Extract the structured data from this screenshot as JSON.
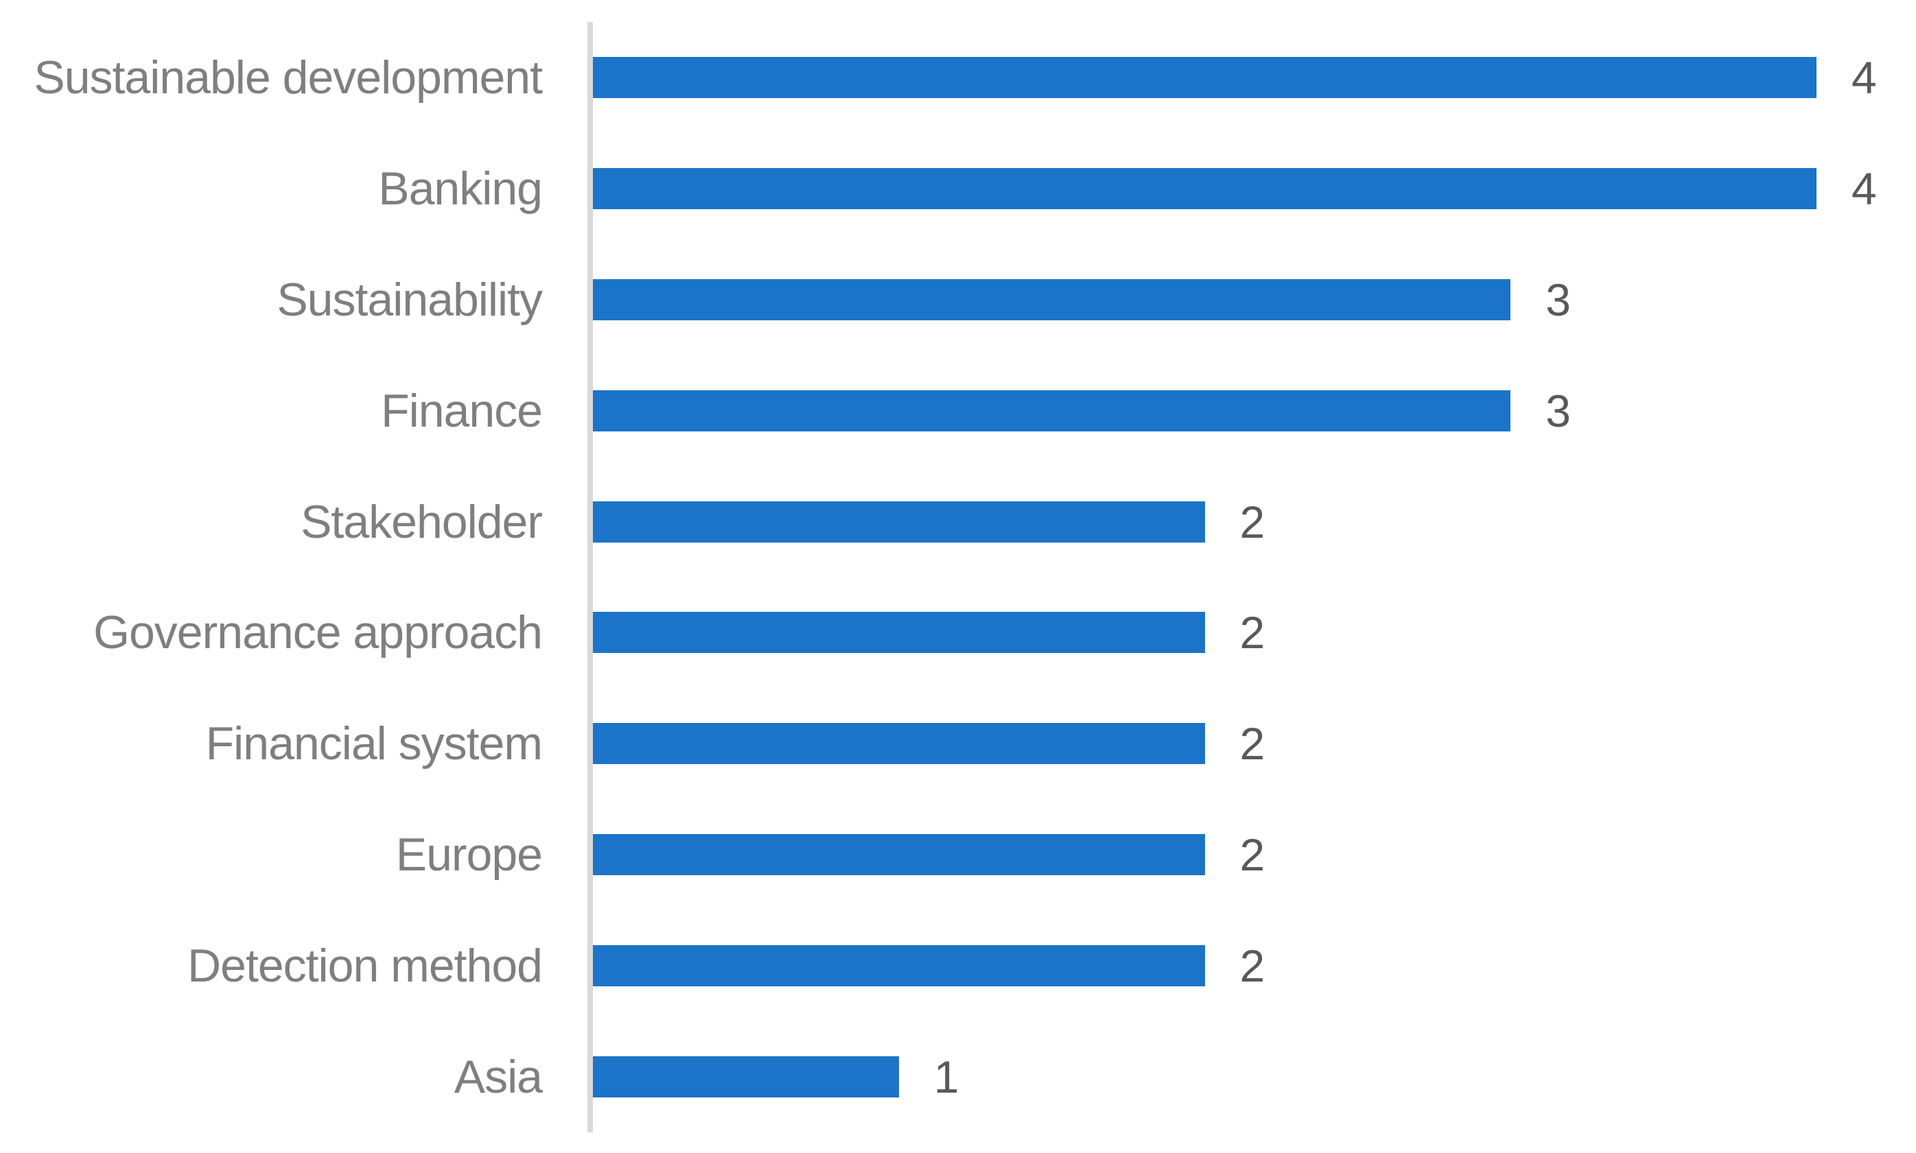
{
  "chart_data": {
    "type": "bar",
    "orientation": "horizontal",
    "title": "",
    "xlabel": "",
    "ylabel": "",
    "categories": [
      "Sustainable development",
      "Banking",
      "Sustainability",
      "Finance",
      "Stakeholder",
      "Governance approach",
      "Financial system",
      "Europe",
      "Detection method",
      "Asia"
    ],
    "values": [
      4,
      4,
      3,
      3,
      2,
      2,
      2,
      2,
      2,
      1
    ],
    "xlim": [
      0,
      4
    ],
    "data_labels": true,
    "grid": false,
    "legend": false,
    "bar_color": "#1B74C8",
    "axis_line_color": "#D9D9D9",
    "category_label_color": "#7F7F7F",
    "value_label_color": "#595959",
    "background_color": "#FFFFFF"
  }
}
